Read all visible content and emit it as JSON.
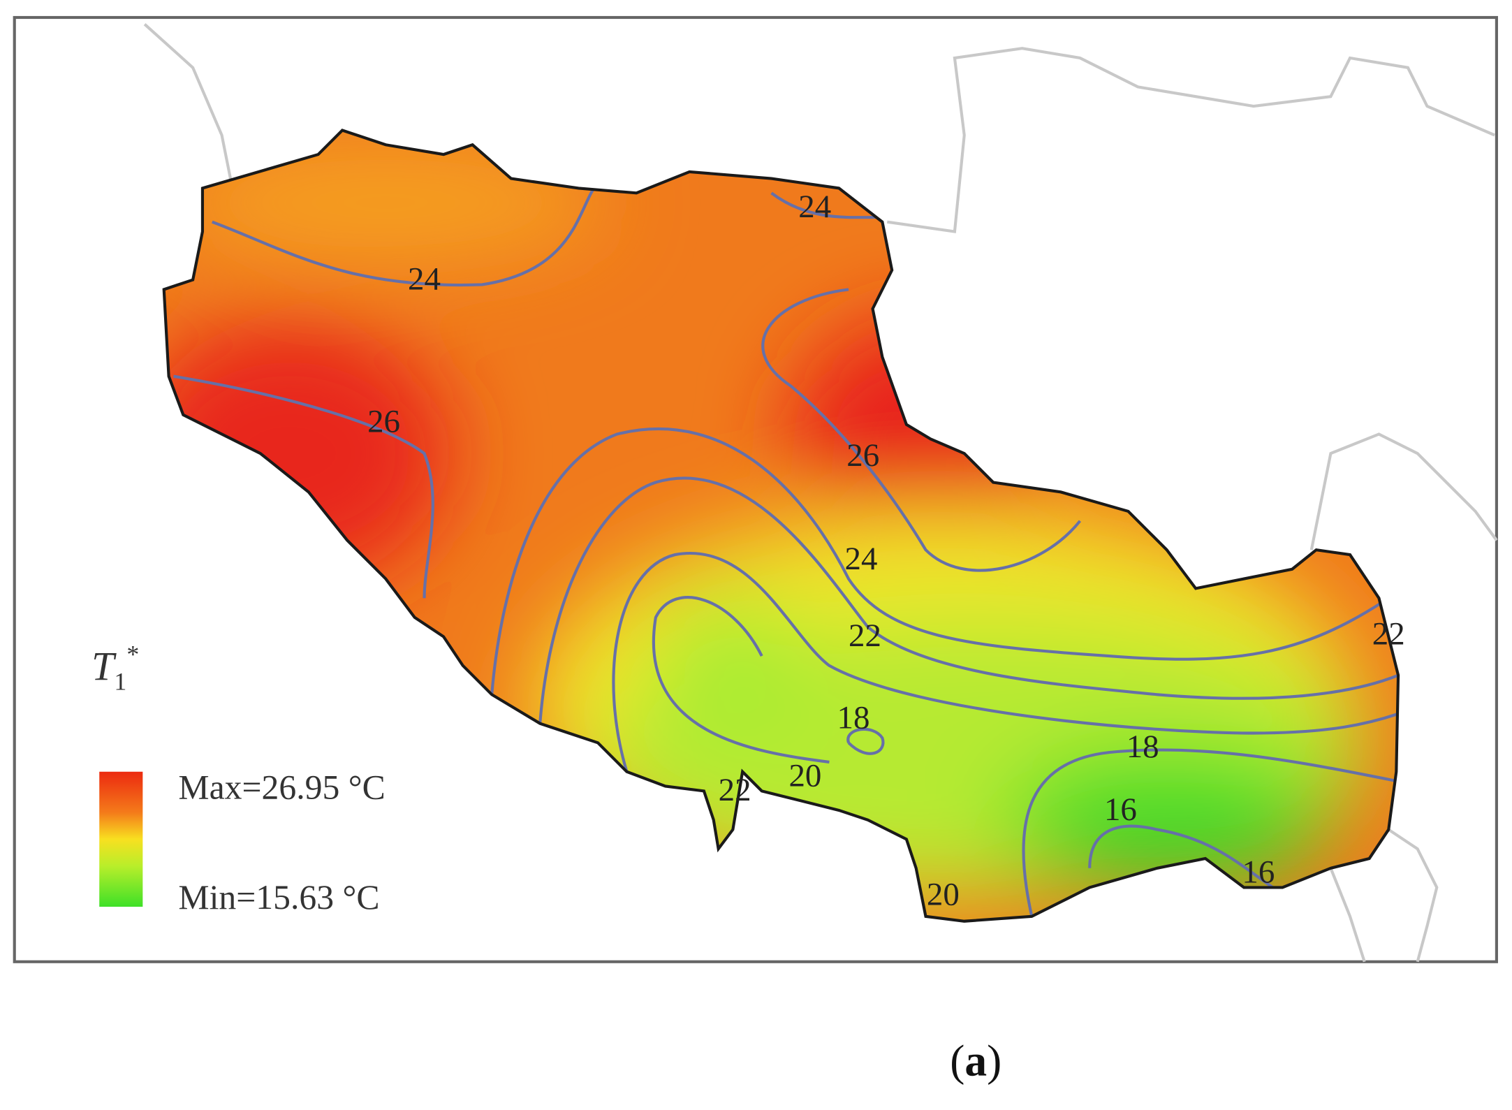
{
  "legend": {
    "symbol": "T",
    "subscript": "1",
    "superscript": "*",
    "max_label": "Max=26.95 °C",
    "min_label": "Min=15.63 °C"
  },
  "contour_labels": [
    24,
    24,
    26,
    26,
    24,
    22,
    18,
    18,
    16,
    16,
    20,
    22,
    20,
    22
  ],
  "caption": {
    "open": "(",
    "letter": "a",
    "close": ")"
  }
}
